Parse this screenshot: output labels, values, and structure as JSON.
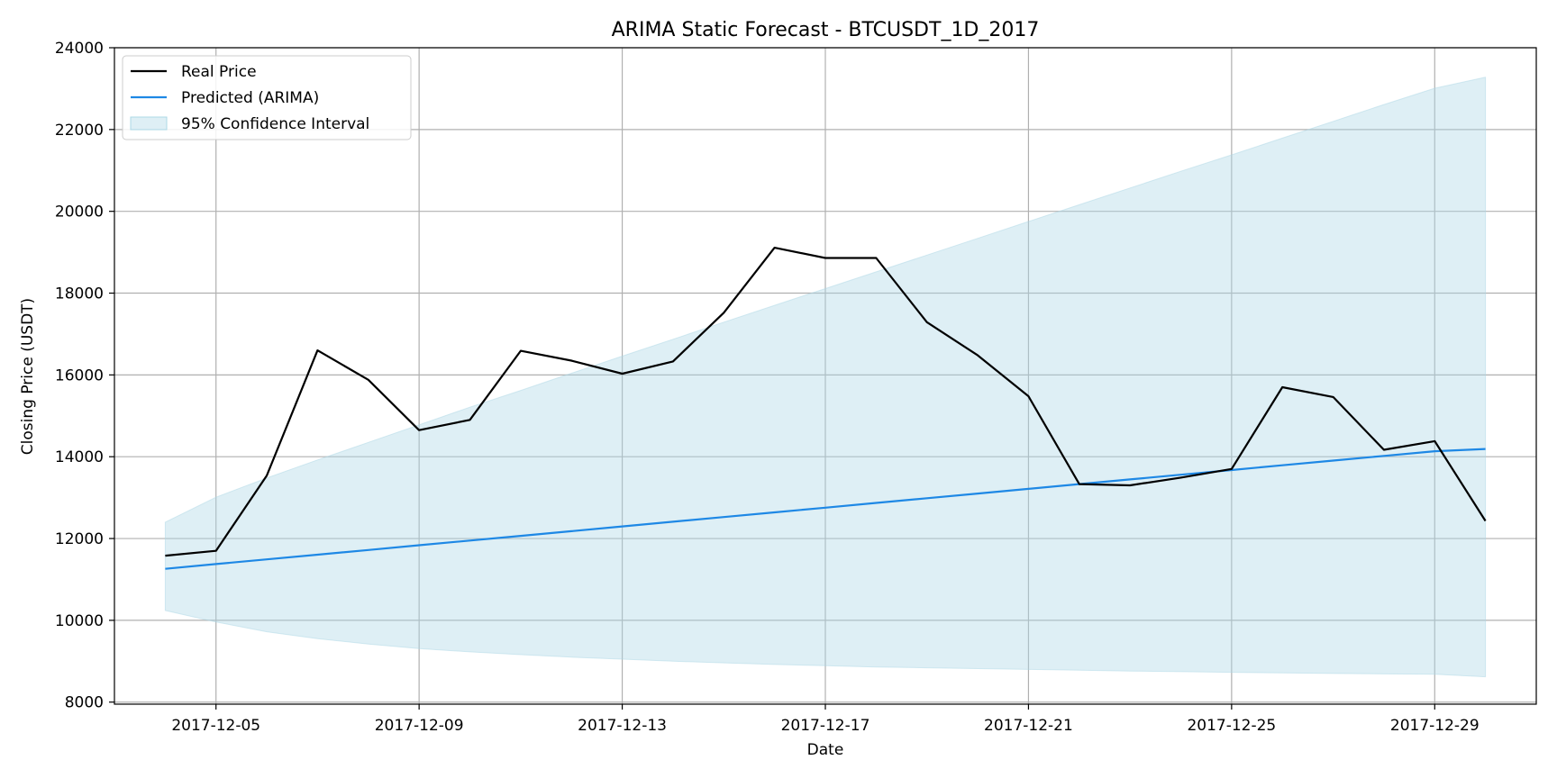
{
  "chart_data": {
    "type": "line",
    "title": "ARIMA Static Forecast - BTCUSDT_1D_2017",
    "xlabel": "Date",
    "ylabel": "Closing Price (USDT)",
    "x": [
      "2017-12-04",
      "2017-12-05",
      "2017-12-06",
      "2017-12-07",
      "2017-12-08",
      "2017-12-09",
      "2017-12-10",
      "2017-12-11",
      "2017-12-12",
      "2017-12-13",
      "2017-12-14",
      "2017-12-15",
      "2017-12-16",
      "2017-12-17",
      "2017-12-18",
      "2017-12-19",
      "2017-12-20",
      "2017-12-21",
      "2017-12-22",
      "2017-12-23",
      "2017-12-24",
      "2017-12-25",
      "2017-12-26",
      "2017-12-27",
      "2017-12-28",
      "2017-12-29",
      "2017-12-30"
    ],
    "x_ticks": [
      "2017-12-05",
      "2017-12-09",
      "2017-12-13",
      "2017-12-17",
      "2017-12-21",
      "2017-12-25",
      "2017-12-29"
    ],
    "xlim": [
      "2017-12-03",
      "2017-12-31"
    ],
    "ylim": [
      7950,
      24000
    ],
    "y_ticks": [
      8000,
      10000,
      12000,
      14000,
      16000,
      18000,
      20000,
      22000,
      24000
    ],
    "grid": true,
    "legend_position": "top-left",
    "series": [
      {
        "name": "Real Price",
        "color": "#000000",
        "values": [
          11580,
          11700,
          13540,
          16600,
          15880,
          14650,
          14900,
          16590,
          16350,
          16030,
          16330,
          17520,
          19110,
          18860,
          18860,
          17290,
          16480,
          15480,
          13330,
          13300,
          13490,
          13700,
          15700,
          15460,
          14170,
          14380,
          12430
        ]
      },
      {
        "name": "Predicted (ARIMA)",
        "color": "#1e88e5",
        "values": [
          11260,
          11375,
          11490,
          11605,
          11720,
          11835,
          11950,
          12065,
          12180,
          12295,
          12410,
          12525,
          12640,
          12755,
          12870,
          12985,
          13100,
          13215,
          13330,
          13445,
          13560,
          13675,
          13790,
          13905,
          14020,
          14135,
          14190
        ]
      }
    ],
    "confidence_interval": {
      "name": "95% Confidence Interval",
      "color": "#add8e6",
      "lower": [
        10240,
        9960,
        9720,
        9550,
        9420,
        9310,
        9230,
        9160,
        9100,
        9050,
        9000,
        8960,
        8920,
        8890,
        8860,
        8840,
        8820,
        8800,
        8780,
        8760,
        8745,
        8730,
        8715,
        8700,
        8690,
        8680,
        8620
      ],
      "upper": [
        12400,
        13010,
        13480,
        13920,
        14350,
        14780,
        15210,
        15620,
        16040,
        16460,
        16870,
        17290,
        17700,
        18110,
        18520,
        18930,
        19340,
        19750,
        20160,
        20570,
        20980,
        21380,
        21790,
        22200,
        22610,
        23010,
        23280
      ]
    }
  }
}
